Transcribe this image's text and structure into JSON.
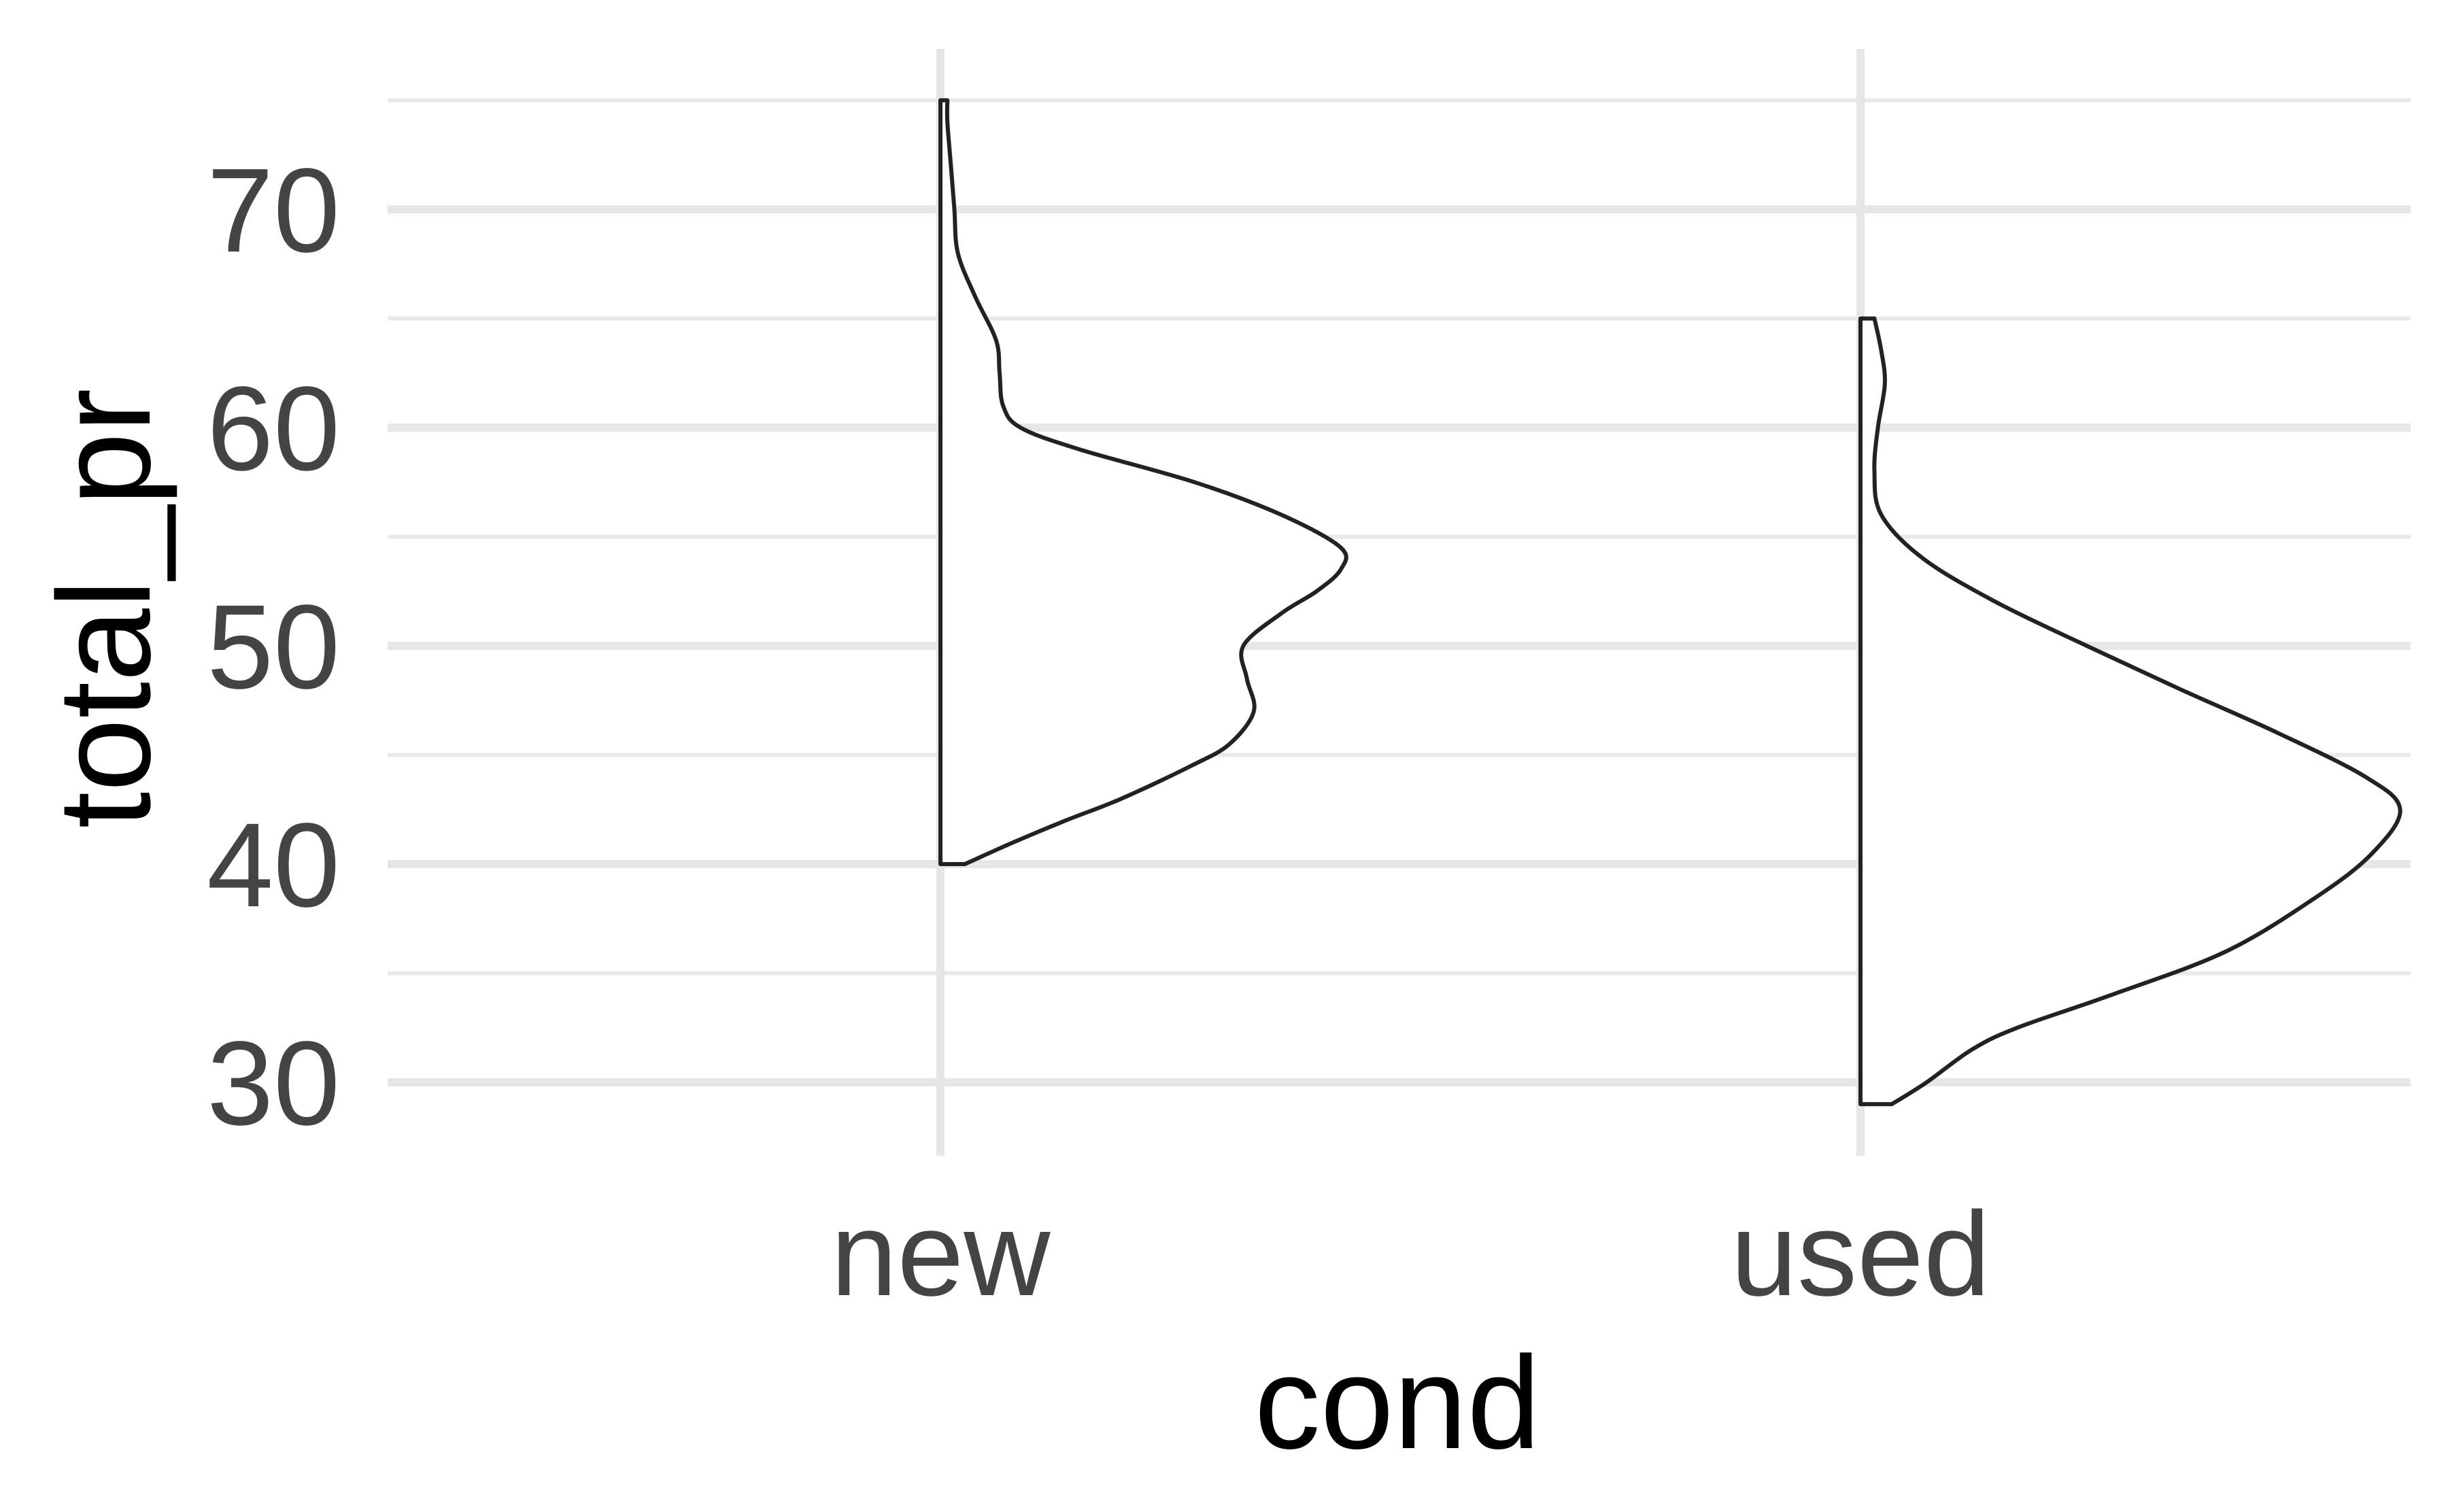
{
  "chart_data": {
    "type": "violin",
    "title": "",
    "xlabel": "cond",
    "ylabel": "total_pr",
    "categories": [
      "new",
      "used"
    ],
    "y_ticks": [
      30,
      40,
      50,
      60,
      70
    ],
    "ylim": [
      27,
      77
    ],
    "grid": true,
    "legend": "none",
    "half_violin": "right",
    "series": [
      {
        "category": "new",
        "density": [
          [
            40.0,
            0.07
          ],
          [
            41.0,
            0.21
          ],
          [
            42.0,
            0.36
          ],
          [
            43.0,
            0.52
          ],
          [
            44.5,
            0.72
          ],
          [
            45.5,
            0.83
          ],
          [
            47.0,
            0.9
          ],
          [
            48.5,
            0.88
          ],
          [
            50.0,
            0.87
          ],
          [
            51.5,
            0.98
          ],
          [
            52.5,
            1.08
          ],
          [
            53.5,
            1.15
          ],
          [
            54.5,
            1.15
          ],
          [
            56.0,
            0.98
          ],
          [
            57.5,
            0.73
          ],
          [
            59.0,
            0.4
          ],
          [
            60.0,
            0.23
          ],
          [
            61.0,
            0.18
          ],
          [
            62.5,
            0.17
          ],
          [
            64.0,
            0.16
          ],
          [
            66.0,
            0.1
          ],
          [
            68.0,
            0.05
          ],
          [
            70.0,
            0.04
          ],
          [
            72.0,
            0.03
          ],
          [
            74.0,
            0.02
          ],
          [
            75.0,
            0.02
          ]
        ]
      },
      {
        "category": "used",
        "density": [
          [
            29.0,
            0.09
          ],
          [
            30.0,
            0.19
          ],
          [
            31.5,
            0.32
          ],
          [
            32.5,
            0.45
          ],
          [
            34.0,
            0.72
          ],
          [
            36.0,
            1.05
          ],
          [
            38.5,
            1.31
          ],
          [
            40.5,
            1.47
          ],
          [
            42.5,
            1.55
          ],
          [
            44.0,
            1.45
          ],
          [
            46.0,
            1.2
          ],
          [
            48.0,
            0.92
          ],
          [
            50.0,
            0.65
          ],
          [
            52.0,
            0.39
          ],
          [
            54.0,
            0.18
          ],
          [
            56.0,
            0.06
          ],
          [
            58.0,
            0.04
          ],
          [
            60.0,
            0.05
          ],
          [
            62.0,
            0.07
          ],
          [
            63.5,
            0.06
          ],
          [
            65.0,
            0.04
          ]
        ]
      }
    ]
  }
}
